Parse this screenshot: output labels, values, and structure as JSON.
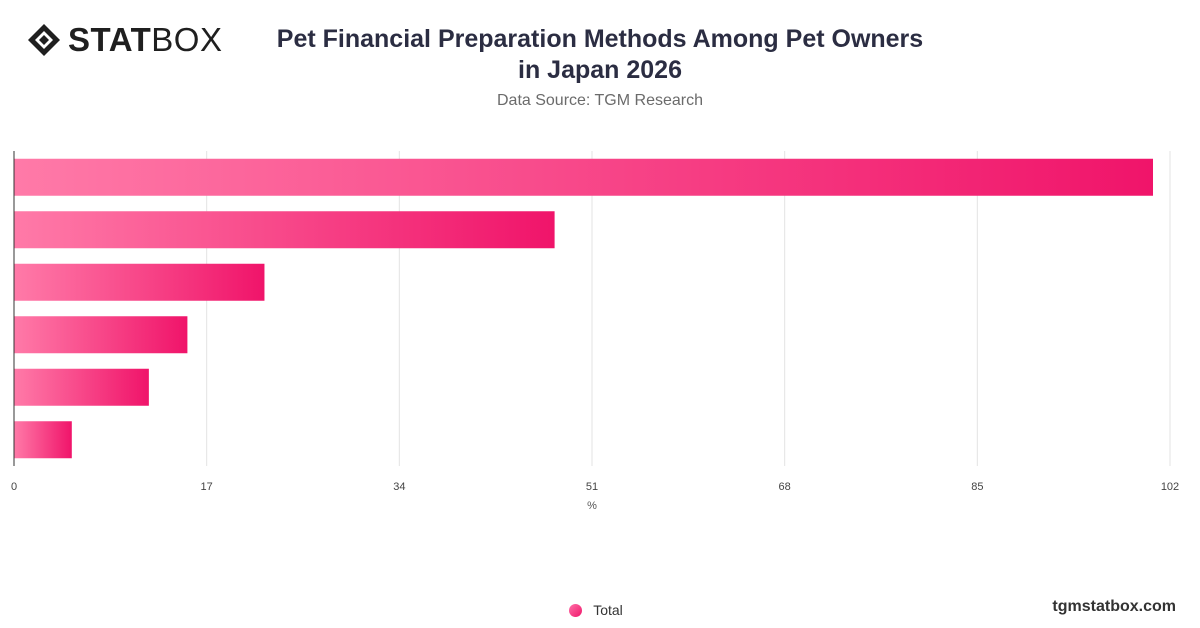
{
  "header": {
    "logo_stat": "STAT",
    "logo_box": "BOX",
    "title_line1": "Pet Financial Preparation Methods Among Pet Owners",
    "title_line2": "in Japan 2026",
    "subtitle": "Data Source: TGM Research"
  },
  "legend": {
    "label": "Total"
  },
  "footer": {
    "site": "tgmstatbox.com"
  },
  "colors": {
    "bar_start": "#ff7aa8",
    "bar_end": "#f0146a",
    "grid": "#e3e3e3",
    "axis": "#333333",
    "text": "#2b2d42"
  },
  "chart_data": {
    "type": "bar",
    "orientation": "horizontal",
    "title": "Pet Financial Preparation Methods Among Pet Owners in Japan 2026",
    "subtitle": "Data Source: TGM Research",
    "xlabel": "%",
    "ylabel": "",
    "xlim": [
      0,
      102
    ],
    "xticks": [
      0,
      17,
      34,
      51,
      68,
      85,
      102
    ],
    "grid": true,
    "legend_position": "bottom",
    "categories": [
      "",
      "",
      "",
      "",
      "",
      ""
    ],
    "series": [
      {
        "name": "Total",
        "values": [
          100.5,
          47.7,
          22.1,
          15.3,
          11.9,
          5.1
        ]
      }
    ]
  }
}
